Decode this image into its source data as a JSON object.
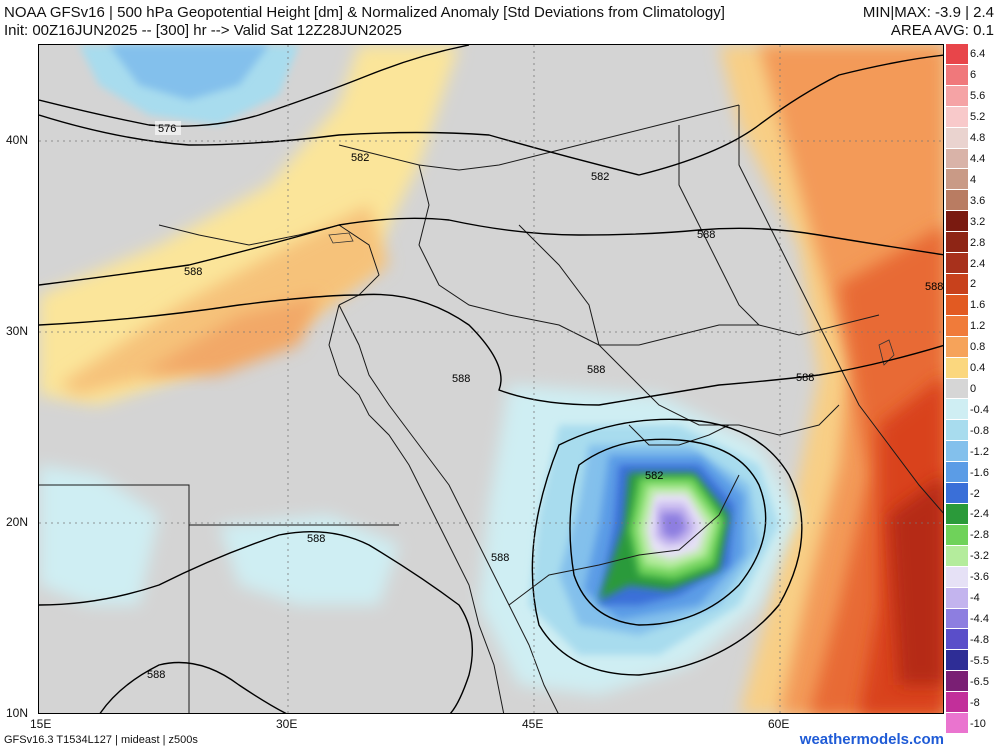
{
  "header": {
    "line1": "NOAA GFSv16 | 500 hPa Geopotential Height [dm] & Normalized Anomaly [Std Deviations from Climatology]",
    "line1_right": "MIN|MAX: -3.9 | 2.4",
    "line2": "Init: 00Z16JUN2025 -- [300] hr --> Valid Sat 12Z28JUN2025",
    "line2_right": "AREA AVG: 0.1"
  },
  "axes": {
    "lat_labels": [
      "40N",
      "30N",
      "20N",
      "10N"
    ],
    "lon_labels": [
      "15E",
      "30E",
      "45E",
      "60E"
    ]
  },
  "contour_labels": [
    "576",
    "582",
    "582",
    "588",
    "588",
    "588",
    "588",
    "588",
    "588",
    "582",
    "588",
    "588",
    "588"
  ],
  "colorbar": {
    "labels": [
      "6.4",
      "6",
      "5.6",
      "5.2",
      "4.8",
      "4.4",
      "4",
      "3.6",
      "3.2",
      "2.8",
      "2.4",
      "2",
      "1.6",
      "1.2",
      "0.8",
      "0.4",
      "0",
      "-0.4",
      "-0.8",
      "-1.2",
      "-1.6",
      "-2",
      "-2.4",
      "-2.8",
      "-3.2",
      "-3.6",
      "-4",
      "-4.4",
      "-4.8",
      "-5.5",
      "-6.5",
      "-8",
      "-10"
    ],
    "colors": [
      "#e8454a",
      "#f0787b",
      "#f5a3a5",
      "#f8c9ca",
      "#ead3cf",
      "#d9b3a8",
      "#c99a86",
      "#b97c62",
      "#7a1a10",
      "#8e2515",
      "#a8311c",
      "#c8411c",
      "#e25a22",
      "#f07b3a",
      "#f6a35a",
      "#fbd77e",
      "#d6d6d6",
      "#cfeef3",
      "#a8dcee",
      "#83c0ec",
      "#5b9ce6",
      "#3a6fd8",
      "#2b9a3a",
      "#6fd25a",
      "#b4ec9c",
      "#e6e1f6",
      "#c3b4ee",
      "#8d7ee0",
      "#5a4ec9",
      "#2e2d96",
      "#7a1f74",
      "#c22f9a",
      "#ea74cf"
    ]
  },
  "footer": {
    "left": "GFSv16.3 T1534L127 | mideast | z500s",
    "right": "weathermodels.com"
  }
}
